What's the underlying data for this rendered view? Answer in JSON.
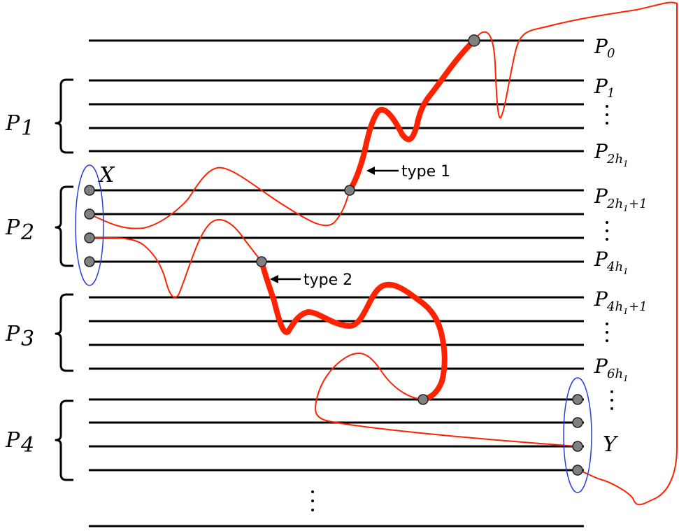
{
  "path_labels": {
    "p0": "P",
    "p0_sub": "0",
    "p1": "P",
    "p1_sub": "1",
    "p2h1": "P",
    "p2h1_sub": "2h",
    "p2h1_subsub": "1",
    "p2h1p1": "P",
    "p2h1p1_sub": "2h",
    "p2h1p1_subsub": "1",
    "p2h1p1_tail": "+1",
    "p4h1": "P",
    "p4h1_sub": "4h",
    "p4h1_subsub": "1",
    "p4h1p1": "P",
    "p4h1p1_sub": "4h",
    "p4h1p1_subsub": "1",
    "p4h1p1_tail": "+1",
    "p6h1": "P",
    "p6h1_sub": "6h",
    "p6h1_subsub": "1"
  },
  "groups": {
    "g1": "P",
    "g1_sub": "1",
    "g2": "P",
    "g2_sub": "2",
    "g3": "P",
    "g3_sub": "3",
    "g4": "P",
    "g4_sub": "4"
  },
  "sets": {
    "x": "X",
    "y": "Y"
  },
  "annotations": {
    "type1": "type 1",
    "type2": "type 2"
  },
  "colors": {
    "path_line": "#000000",
    "route": "#ff2200",
    "set_ellipse": "#2b3fd9",
    "node_fill": "#808080"
  }
}
